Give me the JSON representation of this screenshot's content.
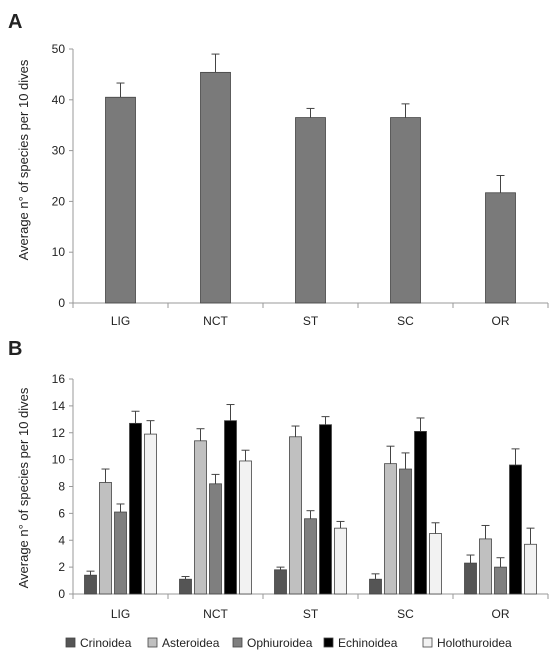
{
  "chart_data": [
    {
      "panel_label": "A",
      "type": "bar",
      "categories": [
        "LIG",
        "NCT",
        "ST",
        "SC",
        "OR"
      ],
      "values": [
        40.5,
        45.4,
        36.5,
        36.5,
        21.7
      ],
      "errors": [
        2.8,
        3.6,
        1.8,
        2.7,
        3.4
      ],
      "ylabel": "Average n° of species per 10 dives",
      "xlabel": "",
      "ylim": [
        0,
        50
      ],
      "yticks": [
        0,
        10,
        20,
        30,
        40,
        50
      ],
      "colors": [
        "#7a7a7a"
      ],
      "grid": false
    },
    {
      "panel_label": "B",
      "type": "bar",
      "categories": [
        "LIG",
        "NCT",
        "ST",
        "SC",
        "OR"
      ],
      "ylabel": "Average n° of species per 10 dives",
      "xlabel": "",
      "ylim": [
        0,
        16
      ],
      "yticks": [
        0,
        2,
        4,
        6,
        8,
        10,
        12,
        14,
        16
      ],
      "grid": false,
      "legend": "bottom",
      "series": [
        {
          "name": "Crinoidea",
          "color": "#555555",
          "values": [
            1.4,
            1.1,
            1.8,
            1.1,
            2.3
          ],
          "errors": [
            0.3,
            0.2,
            0.2,
            0.4,
            0.6
          ]
        },
        {
          "name": "Asteroidea",
          "color": "#c0c0c0",
          "values": [
            8.3,
            11.4,
            11.7,
            9.7,
            4.1
          ],
          "errors": [
            1.0,
            0.9,
            0.8,
            1.3,
            1.0
          ]
        },
        {
          "name": "Ophiuroidea",
          "color": "#7f7f7f",
          "values": [
            6.1,
            8.2,
            5.6,
            9.3,
            2.0
          ],
          "errors": [
            0.6,
            0.7,
            0.6,
            1.2,
            0.7
          ]
        },
        {
          "name": "Echinoidea",
          "color": "#000000",
          "values": [
            12.7,
            12.9,
            12.6,
            12.1,
            9.6
          ],
          "errors": [
            0.9,
            1.2,
            0.6,
            1.0,
            1.2
          ]
        },
        {
          "name": "Holothuroidea",
          "color": "#f2f2f2",
          "values": [
            11.9,
            9.9,
            4.9,
            4.5,
            3.7
          ],
          "errors": [
            1.0,
            0.8,
            0.5,
            0.8,
            1.2
          ]
        }
      ]
    }
  ]
}
